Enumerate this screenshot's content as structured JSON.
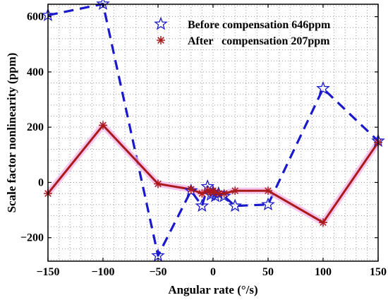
{
  "chart_data": {
    "type": "line",
    "title": "",
    "xlabel": "Angular rate (°/s)",
    "ylabel": "Scale factor nonlinearity (ppm)",
    "xlim": [
      -150,
      150
    ],
    "ylim": [
      -285,
      645
    ],
    "xticks": [
      -150,
      -100,
      -50,
      0,
      50,
      100,
      150
    ],
    "yticks": [
      -200,
      0,
      200,
      400,
      600
    ],
    "grid": true,
    "legend_position": "top-right",
    "series": [
      {
        "name": "Before compensation 646ppm",
        "legend_label": "Before compensation 646ppm",
        "color": "#1a1acc",
        "line_style": "dashed",
        "marker": "star",
        "x": [
          -150,
          -100,
          -50,
          -20,
          -10,
          -5,
          -2,
          0,
          2,
          5,
          10,
          20,
          50,
          100,
          150
        ],
        "y": [
          605,
          646,
          -265,
          -30,
          -85,
          -15,
          -45,
          -35,
          -50,
          -40,
          -50,
          -85,
          -80,
          340,
          150
        ]
      },
      {
        "name": "After compensation 207ppm",
        "legend_label": "After   compensation 207ppm",
        "color": "#aa1a1a",
        "line_style": "solid",
        "marker": "asterisk",
        "x": [
          -150,
          -100,
          -50,
          -20,
          -10,
          -5,
          -2,
          0,
          2,
          5,
          10,
          20,
          50,
          100,
          150
        ],
        "y": [
          -40,
          207,
          -5,
          -25,
          -40,
          -30,
          -35,
          -30,
          -35,
          -40,
          -40,
          -30,
          -30,
          -145,
          145
        ]
      }
    ]
  }
}
